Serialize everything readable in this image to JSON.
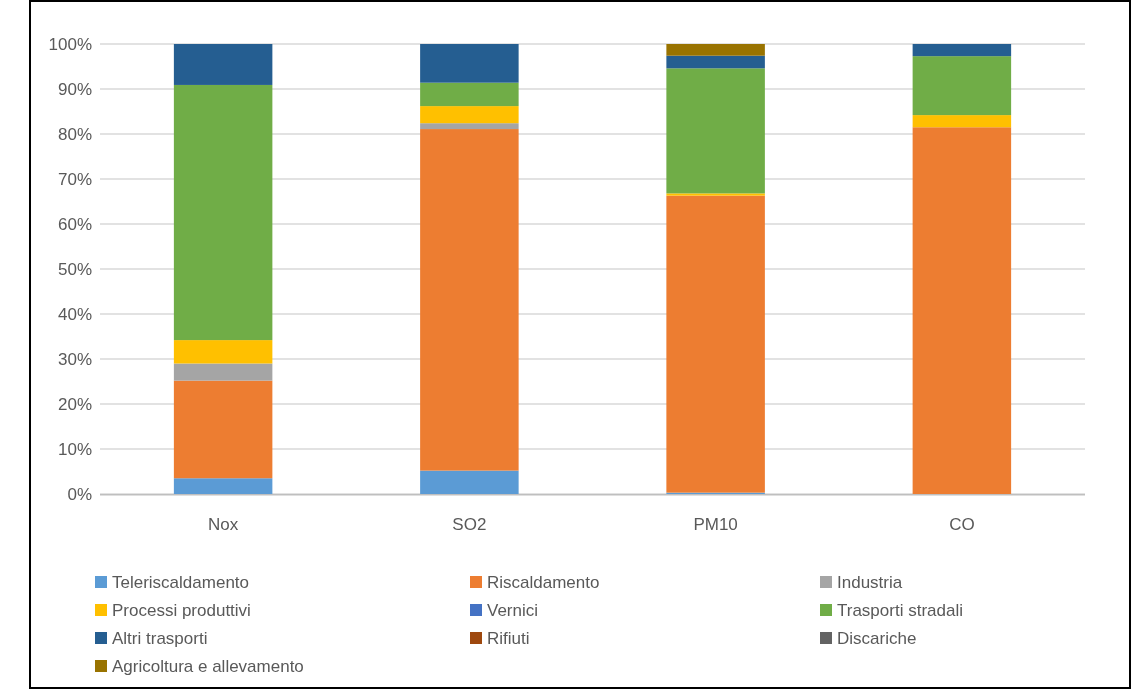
{
  "chart_data": {
    "type": "bar",
    "stacked": true,
    "categories": [
      "Nox",
      "SO2",
      "PM10",
      "CO"
    ],
    "series": [
      {
        "name": "Teleriscaldamento",
        "color": "#5b9bd5",
        "values": [
          3.5,
          5.2,
          0.3,
          0
        ]
      },
      {
        "name": "Riscaldamento",
        "color": "#ed7d31",
        "values": [
          21.7,
          75.9,
          66.0,
          81.5
        ]
      },
      {
        "name": "Industria",
        "color": "#a5a5a5",
        "values": [
          3.8,
          1.3,
          0,
          0
        ]
      },
      {
        "name": "Processi produttivi",
        "color": "#ffc000",
        "values": [
          5.2,
          3.8,
          0.5,
          2.7
        ]
      },
      {
        "name": "Vernici",
        "color": "#4472c4",
        "values": [
          0,
          0,
          0,
          0
        ]
      },
      {
        "name": "Trasporti stradali",
        "color": "#70ad47",
        "values": [
          56.7,
          5.2,
          27.8,
          13.1
        ]
      },
      {
        "name": "Altri trasporti",
        "color": "#255e91",
        "values": [
          9.1,
          8.6,
          2.8,
          2.7
        ]
      },
      {
        "name": "Rifiuti",
        "color": "#9e480e",
        "values": [
          0,
          0,
          0,
          0
        ]
      },
      {
        "name": "Discariche",
        "color": "#636363",
        "values": [
          0,
          0,
          0,
          0
        ]
      },
      {
        "name": "Agricoltura e allevamento",
        "color": "#997300",
        "values": [
          0,
          0,
          2.6,
          0
        ]
      }
    ],
    "ylim": [
      0,
      100
    ],
    "yticks": [
      {
        "value": 0,
        "label": "0%"
      },
      {
        "value": 10,
        "label": "10%"
      },
      {
        "value": 20,
        "label": "20%"
      },
      {
        "value": 30,
        "label": "30%"
      },
      {
        "value": 40,
        "label": "40%"
      },
      {
        "value": 50,
        "label": "50%"
      },
      {
        "value": 60,
        "label": "60%"
      },
      {
        "value": 70,
        "label": "70%"
      },
      {
        "value": 80,
        "label": "80%"
      },
      {
        "value": 90,
        "label": "90%"
      },
      {
        "value": 100,
        "label": "100%"
      }
    ],
    "grid": "y",
    "legend": "bottom"
  }
}
